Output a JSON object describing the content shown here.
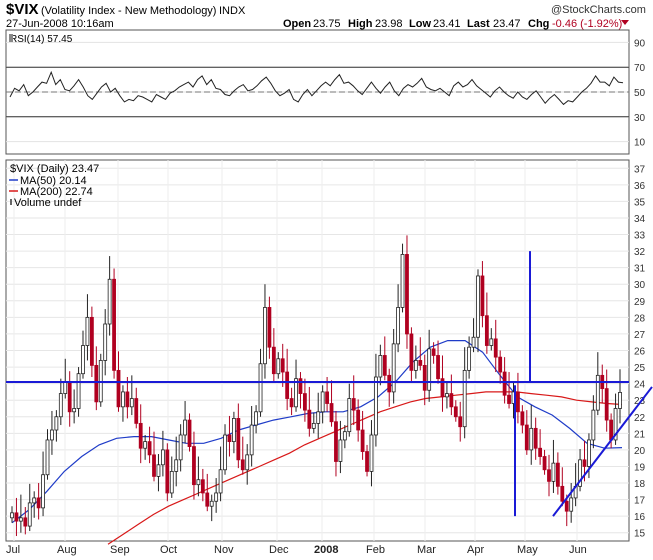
{
  "header": {
    "symbol": "$VIX",
    "name": "(Volatility Index - New Methodology)",
    "exchange": "INDX",
    "copyright": "@StockCharts.com",
    "datetime": "27-Jun-2008 10:16am",
    "quote": {
      "open_label": "Open",
      "open": "23.75",
      "high_label": "High",
      "high": "23.98",
      "low_label": "Low",
      "low": "23.41",
      "last_label": "Last",
      "last": "23.47",
      "chg_label": "Chg",
      "chg": "-0.46 (-1.92%)"
    }
  },
  "colors": {
    "price": "#b00020",
    "ma50": "#1f3cc8",
    "ma200": "#d81818",
    "trend": "#1a1ad6",
    "grid": "#dddddd",
    "axis": "#444444"
  },
  "chart_data": [
    {
      "type": "line",
      "title": "RSI(14) 57.45",
      "legend": [
        {
          "label": "RSI(14) 57.45"
        }
      ],
      "ylim": [
        0,
        100
      ],
      "yticks": [
        "90",
        "70",
        "50",
        "30",
        "10"
      ],
      "reference_lines": [
        70,
        50,
        30
      ],
      "series": [
        {
          "name": "RSI(14)",
          "values": [
            46,
            53,
            51,
            56,
            47,
            50,
            54,
            58,
            57,
            66,
            56,
            60,
            52,
            51,
            55,
            60,
            54,
            47,
            44,
            49,
            54,
            57,
            50,
            53,
            47,
            42,
            44,
            43,
            47,
            46,
            44,
            42,
            48,
            46,
            44,
            49,
            51,
            54,
            56,
            58,
            54,
            60,
            63,
            56,
            60,
            53,
            52,
            48,
            47,
            51,
            54,
            56,
            51,
            52,
            55,
            59,
            62,
            57,
            51,
            47,
            49,
            52,
            44,
            42,
            48,
            52,
            47,
            51,
            55,
            58,
            55,
            60,
            64,
            57,
            58,
            55,
            51,
            48,
            53,
            58,
            53,
            49,
            54,
            58,
            51,
            47,
            53,
            56,
            54,
            57,
            61,
            54,
            52,
            51,
            53,
            50,
            47,
            55,
            58,
            54,
            56,
            60,
            55,
            52,
            49,
            46,
            51,
            54,
            50,
            47,
            45,
            50,
            46,
            44,
            48,
            51,
            46,
            41,
            45,
            48,
            44,
            40,
            43,
            42,
            46,
            50,
            53,
            57,
            63,
            58,
            58,
            55,
            62,
            58,
            57.45
          ]
        }
      ]
    },
    {
      "type": "candlestick",
      "title": "$VIX (Daily) 23.47",
      "legend": [
        {
          "label": "$VIX (Daily) 23.47",
          "color": "#222222"
        },
        {
          "label": "MA(50) 20.14",
          "color": "#1f3cc8"
        },
        {
          "label": "MA(200) 22.74",
          "color": "#d81818"
        },
        {
          "label": "Volume undef",
          "color": "#222222"
        }
      ],
      "ylim": [
        14.5,
        37.5
      ],
      "yticks": [
        "37",
        "36",
        "35",
        "34",
        "33",
        "32",
        "31",
        "30",
        "29",
        "28",
        "27",
        "26",
        "25",
        "24",
        "23",
        "22",
        "21",
        "20",
        "19",
        "18",
        "17",
        "16",
        "15"
      ],
      "x_labels": [
        "Jul",
        "Aug",
        "Sep",
        "Oct",
        "Nov",
        "Dec",
        "2008",
        "Feb",
        "Mar",
        "Apr",
        "May",
        "Jun"
      ],
      "close": [
        16.2,
        15.7,
        15.9,
        15.4,
        16.8,
        17.1,
        16.5,
        18.5,
        20.6,
        21.2,
        22.0,
        23.4,
        24.1,
        22.3,
        22.5,
        24.6,
        26.3,
        28.0,
        25.1,
        22.9,
        25.4,
        27.6,
        30.3,
        24.8,
        22.6,
        23.5,
        22.6,
        23.1,
        21.6,
        20.1,
        20.5,
        19.7,
        18.4,
        19.1,
        20.0,
        17.4,
        18.7,
        19.4,
        20.9,
        21.8,
        20.2,
        17.9,
        18.2,
        17.4,
        16.6,
        16.9,
        17.4,
        18.8,
        20.9,
        20.5,
        21.9,
        19.4,
        18.8,
        19.7,
        21.5,
        22.3,
        25.2,
        28.6,
        26.2,
        24.6,
        25.5,
        24.7,
        23.1,
        22.6,
        24.3,
        23.4,
        22.4,
        21.3,
        21.6,
        22.3,
        23.5,
        22.8,
        21.7,
        19.3,
        20.6,
        21.1,
        23.1,
        22.4,
        21.2,
        19.9,
        18.7,
        20.9,
        24.4,
        25.7,
        24.5,
        23.5,
        26.4,
        28.6,
        31.8,
        27.0,
        24.8,
        25.4,
        25.1,
        23.6,
        26.1,
        25.7,
        24.3,
        23.2,
        23.4,
        22.6,
        22.0,
        21.4,
        24.8,
        26.2,
        26.8,
        30.5,
        28.1,
        26.3,
        26.7,
        25.6,
        24.7,
        23.3,
        22.8,
        23.5,
        22.3,
        21.5,
        20.0,
        21.3,
        20.1,
        19.6,
        18.8,
        18.1,
        19.2,
        17.8,
        16.9,
        16.3,
        17.1,
        17.8,
        19.4,
        19.0,
        20.6,
        22.4,
        24.5,
        23.7,
        21.8,
        20.6,
        22.5,
        23.47
      ],
      "series": [
        {
          "name": "MA(50)",
          "values": [
            15.6,
            16.4,
            17.5,
            18.7,
            19.6,
            20.3,
            20.7,
            20.8,
            20.8,
            20.6,
            20.4,
            20.4,
            20.7,
            21.2,
            21.5,
            21.8,
            22.0,
            22.2,
            22.3,
            22.3,
            22.6,
            23.2,
            24.1,
            25.3,
            26.2,
            26.6,
            26.6,
            25.9,
            24.5,
            23.2,
            22.6,
            22.1,
            21.3,
            20.4,
            20.1,
            20.14
          ]
        },
        {
          "name": "MA(200)",
          "values": [
            14.3,
            14.9,
            15.5,
            16.1,
            16.6,
            17.0,
            17.4,
            17.8,
            18.2,
            18.6,
            19.0,
            19.4,
            19.8,
            20.3,
            20.7,
            21.1,
            21.5,
            21.9,
            22.3,
            22.6,
            22.9,
            23.1,
            23.2,
            23.3,
            23.4,
            23.5,
            23.5,
            23.5,
            23.4,
            23.3,
            23.2,
            23.0,
            22.9,
            22.8,
            22.74
          ]
        }
      ],
      "annotations": [
        "horizontal resistance ~24.1",
        "rising trendline from May low",
        "vertical markers late April and mid May"
      ]
    }
  ]
}
